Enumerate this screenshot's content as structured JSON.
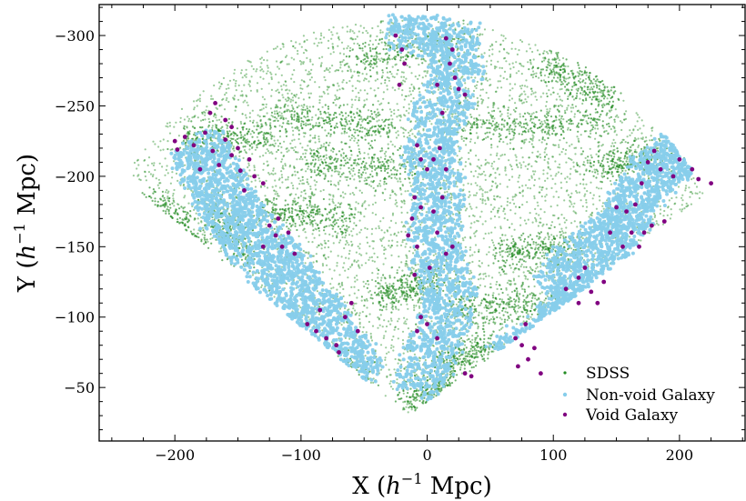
{
  "chart_data": {
    "type": "scatter",
    "title": "",
    "xlabel_main": "X (",
    "xlabel_h": "h",
    "xlabel_exp": "−1",
    "xlabel_unit": " Mpc)",
    "ylabel_main": "Y (",
    "ylabel_h": "h",
    "ylabel_exp": "−1",
    "ylabel_unit": " Mpc)",
    "xlim": [
      -260,
      252
    ],
    "ylim": [
      -12,
      -322
    ],
    "y_inverted": true,
    "xticks": [
      -200,
      -100,
      0,
      100,
      200
    ],
    "xtick_labels": [
      "−200",
      "−100",
      "0",
      "100",
      "200"
    ],
    "yticks": [
      -300,
      -250,
      -200,
      -150,
      -100,
      -50
    ],
    "ytick_labels": [
      "−300",
      "−250",
      "−200",
      "−150",
      "−100",
      "−50"
    ],
    "grid": false,
    "legend_position": "lower-right",
    "survey_boundary": {
      "apex": [
        -15,
        -30
      ],
      "left_corner": [
        -240,
        -205
      ],
      "right_corner": [
        232,
        -195
      ],
      "arc_peak": [
        0,
        -312
      ]
    },
    "series": [
      {
        "name": "SDSS",
        "color": "#228b22",
        "marker_size": 1.1,
        "opacity": 0.45,
        "n_points": 9000,
        "filaments": [
          [
            [
              -120,
              -245
            ],
            [
              -30,
              -235
            ]
          ],
          [
            [
              30,
              -235
            ],
            [
              140,
              -240
            ]
          ],
          [
            [
              -95,
              -210
            ],
            [
              -5,
              -205
            ]
          ],
          [
            [
              -195,
              -225
            ],
            [
              -120,
              -230
            ]
          ],
          [
            [
              -130,
              -175
            ],
            [
              -60,
              -170
            ]
          ],
          [
            [
              -40,
              -115
            ],
            [
              10,
              -125
            ]
          ],
          [
            [
              15,
              -105
            ],
            [
              90,
              -110
            ]
          ],
          [
            [
              -110,
              -75
            ],
            [
              -50,
              -60
            ]
          ],
          [
            [
              10,
              -65
            ],
            [
              50,
              -80
            ]
          ],
          [
            [
              60,
              -145
            ],
            [
              120,
              -150
            ]
          ],
          [
            [
              -60,
              -280
            ],
            [
              40,
              -300
            ]
          ],
          [
            [
              90,
              -280
            ],
            [
              150,
              -255
            ]
          ],
          [
            [
              -170,
              -180
            ],
            [
              -140,
              -140
            ]
          ],
          [
            [
              -15,
              -40
            ],
            [
              25,
              -55
            ]
          ],
          [
            [
              -220,
              -185
            ],
            [
              -180,
              -150
            ]
          ],
          [
            [
              130,
              -205
            ],
            [
              190,
              -215
            ]
          ]
        ]
      },
      {
        "name": "Non-void Galaxy",
        "color": "#87ceeb",
        "marker_size": 2.0,
        "opacity": 0.95,
        "n_points": 6500,
        "regions": [
          [
            [
              -185,
              -225
            ],
            [
              -155,
              -175
            ],
            [
              -125,
              -140
            ],
            [
              -95,
              -110
            ],
            [
              -75,
              -80
            ],
            [
              -50,
              -52
            ]
          ],
          [
            [
              -30,
              -310
            ],
            [
              20,
              -305
            ],
            [
              25,
              -265
            ],
            [
              0,
              -230
            ],
            [
              10,
              -190
            ],
            [
              5,
              -150
            ],
            [
              20,
              -110
            ],
            [
              0,
              -70
            ],
            [
              -10,
              -45
            ]
          ],
          [
            [
              205,
              -220
            ],
            [
              170,
              -195
            ],
            [
              155,
              -165
            ],
            [
              120,
              -140
            ],
            [
              100,
              -115
            ],
            [
              115,
              -95
            ],
            [
              60,
              -65
            ]
          ]
        ],
        "widths": [
          22,
          20,
          18
        ]
      },
      {
        "name": "Void Galaxy",
        "color": "#800080",
        "marker_size": 2.4,
        "opacity": 1,
        "points": [
          [
            -200,
            -225
          ],
          [
            -198,
            -219
          ],
          [
            -192,
            -228
          ],
          [
            -185,
            -222
          ],
          [
            -176,
            -231
          ],
          [
            -170,
            -218
          ],
          [
            -165,
            -208
          ],
          [
            -160,
            -226
          ],
          [
            -155,
            -215
          ],
          [
            -150,
            -220
          ],
          [
            -148,
            -204
          ],
          [
            -141,
            -212
          ],
          [
            -137,
            -200
          ],
          [
            -130,
            -195
          ],
          [
            -172,
            -245
          ],
          [
            -168,
            -252
          ],
          [
            -160,
            -240
          ],
          [
            -155,
            -235
          ],
          [
            -180,
            -205
          ],
          [
            -145,
            -190
          ],
          [
            -125,
            -165
          ],
          [
            -120,
            -158
          ],
          [
            -115,
            -150
          ],
          [
            -110,
            -160
          ],
          [
            -118,
            -170
          ],
          [
            -105,
            -145
          ],
          [
            -130,
            -150
          ],
          [
            -95,
            -95
          ],
          [
            -88,
            -90
          ],
          [
            -80,
            -85
          ],
          [
            -72,
            -80
          ],
          [
            -65,
            -100
          ],
          [
            -60,
            -110
          ],
          [
            -70,
            -75
          ],
          [
            -85,
            -105
          ],
          [
            -55,
            -90
          ],
          [
            -25,
            -300
          ],
          [
            -20,
            -290
          ],
          [
            -18,
            -280
          ],
          [
            -22,
            -265
          ],
          [
            15,
            -298
          ],
          [
            20,
            -290
          ],
          [
            18,
            -280
          ],
          [
            22,
            -270
          ],
          [
            25,
            -262
          ],
          [
            30,
            -258
          ],
          [
            12,
            -245
          ],
          [
            8,
            -265
          ],
          [
            -8,
            -222
          ],
          [
            -5,
            -212
          ],
          [
            0,
            -205
          ],
          [
            5,
            -212
          ],
          [
            10,
            -220
          ],
          [
            15,
            -205
          ],
          [
            -10,
            -185
          ],
          [
            -5,
            -178
          ],
          [
            5,
            -175
          ],
          [
            12,
            -185
          ],
          [
            -12,
            -170
          ],
          [
            8,
            -160
          ],
          [
            -8,
            -150
          ],
          [
            2,
            -135
          ],
          [
            -10,
            -130
          ],
          [
            15,
            -145
          ],
          [
            20,
            -150
          ],
          [
            -15,
            -158
          ],
          [
            -5,
            -100
          ],
          [
            0,
            -95
          ],
          [
            8,
            -85
          ],
          [
            -8,
            -90
          ],
          [
            30,
            -60
          ],
          [
            35,
            -58
          ],
          [
            180,
            -218
          ],
          [
            175,
            -210
          ],
          [
            185,
            -205
          ],
          [
            195,
            -200
          ],
          [
            200,
            -212
          ],
          [
            210,
            -205
          ],
          [
            215,
            -198
          ],
          [
            225,
            -195
          ],
          [
            170,
            -195
          ],
          [
            165,
            -180
          ],
          [
            158,
            -175
          ],
          [
            150,
            -178
          ],
          [
            145,
            -160
          ],
          [
            162,
            -160
          ],
          [
            168,
            -150
          ],
          [
            172,
            -160
          ],
          [
            178,
            -165
          ],
          [
            188,
            -168
          ],
          [
            155,
            -150
          ],
          [
            125,
            -135
          ],
          [
            120,
            -128
          ],
          [
            130,
            -118
          ],
          [
            140,
            -125
          ],
          [
            135,
            -110
          ],
          [
            120,
            -110
          ],
          [
            110,
            -120
          ],
          [
            70,
            -85
          ],
          [
            75,
            -80
          ],
          [
            80,
            -70
          ],
          [
            85,
            -78
          ],
          [
            72,
            -65
          ],
          [
            78,
            -95
          ],
          [
            90,
            -60
          ]
        ]
      }
    ],
    "legend": [
      {
        "label": "SDSS",
        "color": "#228b22"
      },
      {
        "label": "Non-void Galaxy",
        "color": "#87ceeb"
      },
      {
        "label": "Void Galaxy",
        "color": "#800080"
      }
    ]
  }
}
